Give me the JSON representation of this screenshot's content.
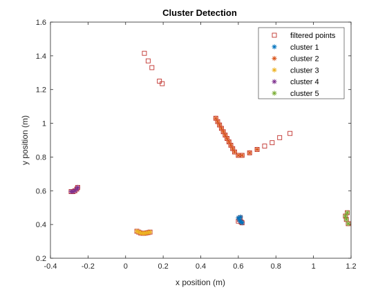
{
  "chart_data": {
    "type": "scatter",
    "title": "Cluster Detection",
    "xlabel": "x position (m)",
    "ylabel": "y position (m)",
    "xlim": [
      -0.4,
      1.2
    ],
    "ylim": [
      0.2,
      1.6
    ],
    "xticks": [
      "-0.4",
      "-0.2",
      "0",
      "0.2",
      "0.4",
      "0.6",
      "0.8",
      "1",
      "1.2"
    ],
    "yticks": [
      "0.2",
      "0.4",
      "0.6",
      "0.8",
      "1",
      "1.2",
      "1.4",
      "1.6"
    ],
    "grid": false,
    "legend_position": "top-right",
    "series": [
      {
        "name": "filtered points",
        "marker": "square",
        "color": "#c0302b",
        "x": [
          0.1,
          0.12,
          0.14,
          0.18,
          0.195,
          0.48,
          0.49,
          0.5,
          0.51,
          0.52,
          0.53,
          0.54,
          0.55,
          0.56,
          0.57,
          0.58,
          0.6,
          0.62,
          0.66,
          0.7,
          0.74,
          0.78,
          0.82,
          0.875,
          -0.29,
          -0.28,
          -0.27,
          -0.26,
          -0.255,
          0.06,
          0.07,
          0.08,
          0.09,
          0.1,
          0.11,
          0.12,
          0.13,
          0.6,
          0.605,
          0.61,
          0.615,
          0.62,
          1.17,
          1.175,
          1.18,
          1.185
        ],
        "y": [
          1.415,
          1.37,
          1.33,
          1.25,
          1.235,
          1.03,
          1.01,
          0.99,
          0.97,
          0.95,
          0.93,
          0.91,
          0.89,
          0.87,
          0.85,
          0.83,
          0.81,
          0.81,
          0.825,
          0.845,
          0.865,
          0.885,
          0.915,
          0.94,
          0.595,
          0.595,
          0.6,
          0.61,
          0.62,
          0.36,
          0.355,
          0.35,
          0.348,
          0.348,
          0.35,
          0.352,
          0.355,
          0.42,
          0.43,
          0.44,
          0.415,
          0.41,
          0.45,
          0.43,
          0.47,
          0.405
        ]
      },
      {
        "name": "cluster 1",
        "marker": "asterisk",
        "color": "#0072bd",
        "x": [
          0.6,
          0.605,
          0.61,
          0.612,
          0.615,
          0.62
        ],
        "y": [
          0.44,
          0.43,
          0.42,
          0.445,
          0.415,
          0.41
        ]
      },
      {
        "name": "cluster 2",
        "marker": "asterisk",
        "color": "#d95319",
        "x": [
          0.48,
          0.49,
          0.5,
          0.51,
          0.52,
          0.53,
          0.54,
          0.55,
          0.56,
          0.57,
          0.58,
          0.6,
          0.62,
          0.66,
          0.7
        ],
        "y": [
          1.03,
          1.01,
          0.99,
          0.97,
          0.95,
          0.93,
          0.91,
          0.89,
          0.87,
          0.85,
          0.83,
          0.81,
          0.81,
          0.825,
          0.845
        ]
      },
      {
        "name": "cluster 3",
        "marker": "asterisk",
        "color": "#edb120",
        "x": [
          0.06,
          0.07,
          0.08,
          0.09,
          0.1,
          0.11,
          0.12,
          0.13
        ],
        "y": [
          0.36,
          0.355,
          0.35,
          0.348,
          0.348,
          0.35,
          0.352,
          0.355
        ]
      },
      {
        "name": "cluster 4",
        "marker": "asterisk",
        "color": "#7e2f8e",
        "x": [
          -0.29,
          -0.28,
          -0.27,
          -0.26,
          -0.255
        ],
        "y": [
          0.595,
          0.595,
          0.6,
          0.61,
          0.62
        ]
      },
      {
        "name": "cluster 5",
        "marker": "asterisk",
        "color": "#77ac30",
        "x": [
          1.17,
          1.175,
          1.18,
          1.185
        ],
        "y": [
          0.45,
          0.43,
          0.47,
          0.405
        ]
      }
    ]
  }
}
